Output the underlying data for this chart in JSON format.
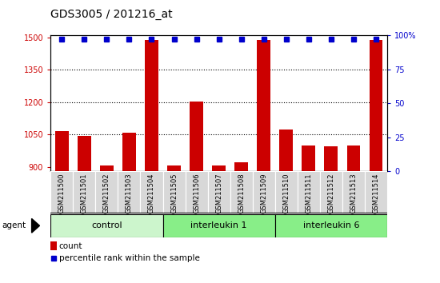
{
  "title": "GDS3005 / 201216_at",
  "samples": [
    "GSM211500",
    "GSM211501",
    "GSM211502",
    "GSM211503",
    "GSM211504",
    "GSM211505",
    "GSM211506",
    "GSM211507",
    "GSM211508",
    "GSM211509",
    "GSM211510",
    "GSM211511",
    "GSM211512",
    "GSM211513",
    "GSM211514"
  ],
  "counts": [
    1065,
    1045,
    905,
    1060,
    1490,
    905,
    1205,
    905,
    920,
    1490,
    1075,
    1000,
    995,
    1000,
    1490
  ],
  "percentile_ranks": [
    97,
    97,
    97,
    97,
    97,
    97,
    97,
    97,
    97,
    97,
    97,
    97,
    97,
    97,
    97
  ],
  "groups": [
    {
      "label": "control",
      "start": 0,
      "end": 4,
      "color": "#ccf5cc"
    },
    {
      "label": "interleukin 1",
      "start": 5,
      "end": 9,
      "color": "#88ee88"
    },
    {
      "label": "interleukin 6",
      "start": 10,
      "end": 14,
      "color": "#88ee88"
    }
  ],
  "ylim_left": [
    880,
    1510
  ],
  "ylim_right": [
    0,
    100
  ],
  "yticks_left": [
    900,
    1050,
    1200,
    1350,
    1500
  ],
  "yticks_right": [
    0,
    25,
    50,
    75,
    100
  ],
  "bar_color": "#cc0000",
  "dot_color": "#0000cc",
  "bar_width": 0.6,
  "background_color": "#ffffff",
  "plot_bg_color": "#ffffff",
  "title_fontsize": 10,
  "tick_fontsize": 7,
  "sample_fontsize": 6,
  "group_label_fontsize": 8,
  "agent_label": "agent",
  "legend_items": [
    "count",
    "percentile rank within the sample"
  ],
  "legend_colors": [
    "#cc0000",
    "#0000cc"
  ],
  "grid_ticks": [
    1050,
    1200,
    1350
  ]
}
